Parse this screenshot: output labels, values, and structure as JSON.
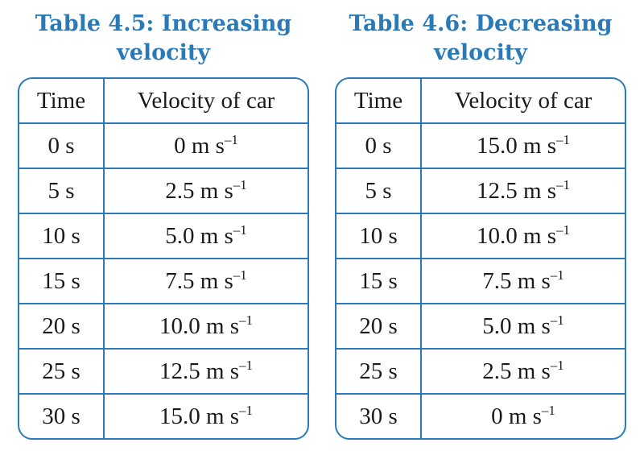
{
  "tables": [
    {
      "title": "Table 4.5: Increasing\nvelocity",
      "headers": [
        "Time",
        "Velocity of car"
      ],
      "rows": [
        {
          "time": "0 s",
          "velocity": "0 m s",
          "unit_exp": "–1"
        },
        {
          "time": "5 s",
          "velocity": "2.5 m s",
          "unit_exp": "–1"
        },
        {
          "time": "10 s",
          "velocity": "5.0 m s",
          "unit_exp": "–1"
        },
        {
          "time": "15 s",
          "velocity": "7.5 m s",
          "unit_exp": "–1"
        },
        {
          "time": "20 s",
          "velocity": "10.0 m s",
          "unit_exp": "–1"
        },
        {
          "time": "25 s",
          "velocity": "12.5 m s",
          "unit_exp": "–1"
        },
        {
          "time": "30 s",
          "velocity": "15.0 m s",
          "unit_exp": "–1"
        }
      ]
    },
    {
      "title": "Table 4.6: Decreasing\nvelocity",
      "headers": [
        "Time",
        "Velocity of car"
      ],
      "rows": [
        {
          "time": "0 s",
          "velocity": "15.0 m s",
          "unit_exp": "–1"
        },
        {
          "time": "5 s",
          "velocity": "12.5 m s",
          "unit_exp": "–1"
        },
        {
          "time": "10 s",
          "velocity": "10.0 m s",
          "unit_exp": "–1"
        },
        {
          "time": "15 s",
          "velocity": "7.5 m s",
          "unit_exp": "–1"
        },
        {
          "time": "20 s",
          "velocity": "5.0 m s",
          "unit_exp": "–1"
        },
        {
          "time": "25 s",
          "velocity": "2.5 m s",
          "unit_exp": "–1"
        },
        {
          "time": "30 s",
          "velocity": "0 m s",
          "unit_exp": "–1"
        }
      ]
    }
  ],
  "colors": {
    "accent": "#2a7ab8",
    "text": "#1a1a1a",
    "background": "#ffffff"
  }
}
